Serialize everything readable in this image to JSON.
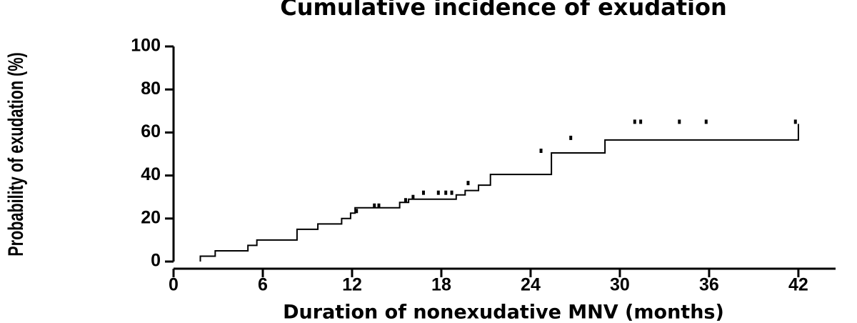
{
  "chart_data": {
    "type": "step",
    "title": "Cumulative incidence of exudation",
    "xlabel": "Duration of nonexudative MNV (months)",
    "ylabel": "Probability of exudation (%)",
    "x": [
      1.8,
      1.8,
      2.8,
      5,
      5.6,
      8.3,
      9.7,
      11.3,
      11.9,
      12.2,
      15.2,
      15.8,
      19,
      19.6,
      20.5,
      21.3,
      25.4,
      29,
      42
    ],
    "values": [
      0,
      2.5,
      5,
      7.5,
      10,
      15,
      17.5,
      20,
      22.5,
      25,
      27.5,
      29,
      31,
      33,
      35.5,
      40.5,
      50.5,
      56.5,
      64
    ],
    "censored": {
      "x": [
        12.3,
        13.5,
        13.8,
        15.6,
        16.1,
        16.8,
        17.8,
        18.3,
        18.7,
        19.8,
        24.7,
        26.7,
        31,
        31.4,
        34,
        35.8,
        41.8
      ],
      "y": [
        22.5,
        25,
        25,
        27.5,
        29,
        31,
        31,
        31,
        31,
        35.5,
        50.5,
        56.5,
        64,
        64,
        64,
        64,
        64
      ]
    },
    "color": "#000000",
    "xlim": [
      0,
      44.5
    ],
    "xticks": [
      0,
      6,
      12,
      18,
      24,
      30,
      36,
      42
    ],
    "ylim": [
      0,
      100
    ],
    "yticks": [
      0,
      20,
      40,
      60,
      80,
      100
    ],
    "grid": false
  }
}
